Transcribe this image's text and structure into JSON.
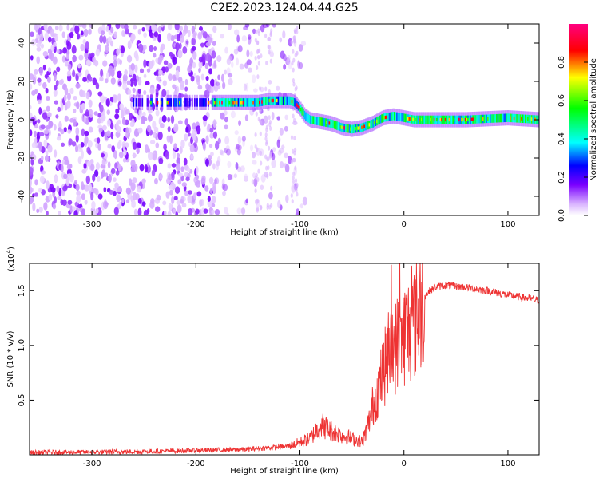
{
  "figure": {
    "title": "C2E2.2023.124.04.44.G25"
  },
  "chart_data": [
    {
      "type": "heatmap",
      "xlabel": "Height of straight line (km)",
      "ylabel": "Frequency (Hz)",
      "xlim": [
        -360,
        130
      ],
      "ylim": [
        -50,
        50
      ],
      "x_ticks": [
        -300,
        -200,
        -100,
        0,
        100
      ],
      "y_ticks": [
        -40,
        -20,
        0,
        20,
        40
      ],
      "colorbar": {
        "label": "Normalized spectral amplitude",
        "range": [
          0.0,
          1.0
        ],
        "ticks": [
          0.0,
          0.2,
          0.4,
          0.6,
          0.8
        ],
        "colormap": [
          "#ffffff",
          "#d9b3ff",
          "#7a00ff",
          "#0000ff",
          "#00ffff",
          "#00ff00",
          "#ffff00",
          "#ff0000",
          "#ff0080"
        ]
      },
      "series": [
        {
          "description_points_x": [
            -185,
            -170,
            -160,
            -150,
            -140,
            -130,
            -120,
            -110,
            -105,
            -100,
            -95,
            -90,
            -80,
            -70,
            -60,
            -50,
            -40,
            -30,
            -20,
            -10,
            0,
            10,
            20,
            40,
            60,
            80,
            100,
            130
          ],
          "description_points_y": [
            9,
            9,
            9,
            9,
            9,
            10,
            10,
            10,
            9,
            6,
            2,
            0,
            -1,
            -2,
            -4,
            -5,
            -4,
            -2,
            1,
            2,
            1,
            0,
            0,
            0,
            0,
            0.5,
            1,
            0
          ]
        }
      ]
    },
    {
      "type": "line",
      "xlabel": "Height of straight line (km)",
      "ylabel": "SNR (10 * v/v)",
      "multiplier_label": "(x10",
      "multiplier_exp": "4",
      "multiplier_close": ")",
      "xlim": [
        -360,
        130
      ],
      "ylim": [
        0,
        17500
      ],
      "x_ticks": [
        -300,
        -200,
        -100,
        0,
        100
      ],
      "y_ticks": [
        5000,
        10000,
        15000
      ],
      "y_tick_labels": [
        "0.5",
        "1.0",
        "1.5"
      ],
      "color": "#ee3333",
      "series": [
        {
          "x": [
            -360,
            -300,
            -250,
            -200,
            -150,
            -110,
            -90,
            -80,
            -70,
            -60,
            -50,
            -40,
            -35,
            -30,
            -25,
            -20,
            -15,
            -10,
            -5,
            0,
            5,
            10,
            15,
            20,
            25,
            30,
            40,
            60,
            80,
            100,
            120,
            130
          ],
          "y": [
            200,
            250,
            300,
            400,
            500,
            800,
            1500,
            2800,
            2200,
            1800,
            1500,
            1200,
            2500,
            4500,
            6000,
            7500,
            9000,
            9500,
            10500,
            11000,
            11500,
            12000,
            13000,
            14500,
            15000,
            15300,
            15500,
            15300,
            15000,
            14600,
            14300,
            14100
          ]
        }
      ]
    }
  ]
}
